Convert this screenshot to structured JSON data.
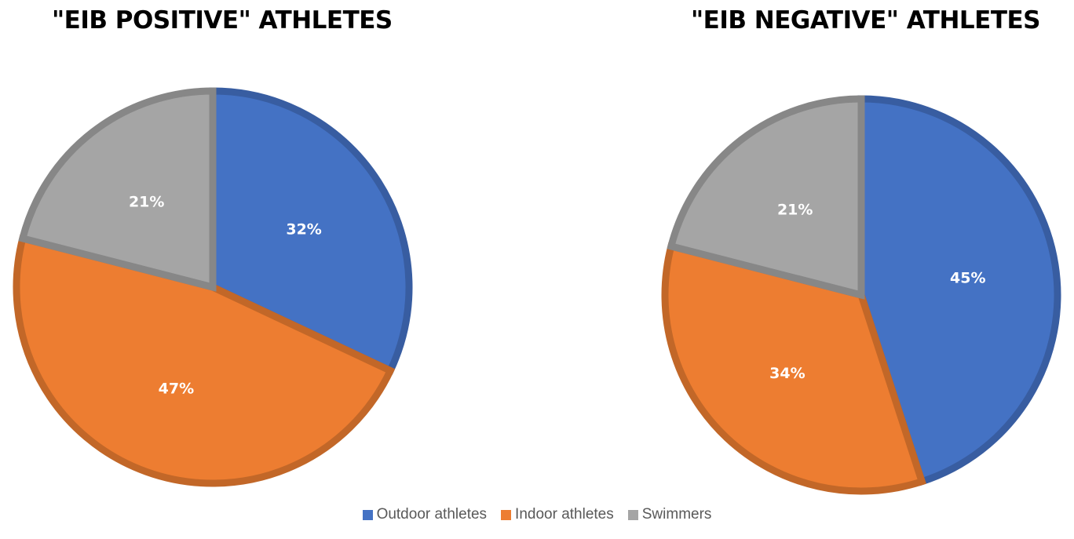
{
  "charts": {
    "left_title": "\"EIB POSITIVE\" ATHLETES",
    "right_title": "\"EIB NEGATIVE\" ATHLETES"
  },
  "legend": {
    "items": [
      {
        "label": "Outdoor athletes",
        "color": "#4472C4"
      },
      {
        "label": "Indoor athletes",
        "color": "#ED7D31"
      },
      {
        "label": "Swimmers",
        "color": "#A5A5A5"
      }
    ]
  },
  "chart_data": [
    {
      "type": "pie",
      "title": "\"EIB POSITIVE\" ATHLETES",
      "categories": [
        "Outdoor athletes",
        "Indoor athletes",
        "Swimmers"
      ],
      "values": [
        32,
        47,
        21
      ],
      "labels": [
        "32%",
        "47%",
        "21%"
      ],
      "colors": [
        "#4472C4",
        "#ED7D31",
        "#A5A5A5"
      ],
      "legend": "bottom"
    },
    {
      "type": "pie",
      "title": "\"EIB NEGATIVE\" ATHLETES",
      "categories": [
        "Outdoor athletes",
        "Indoor athletes",
        "Swimmers"
      ],
      "values": [
        45,
        34,
        21
      ],
      "labels": [
        "45%",
        "34%",
        "21%"
      ],
      "colors": [
        "#4472C4",
        "#ED7D31",
        "#A5A5A5"
      ],
      "legend": "bottom"
    }
  ]
}
